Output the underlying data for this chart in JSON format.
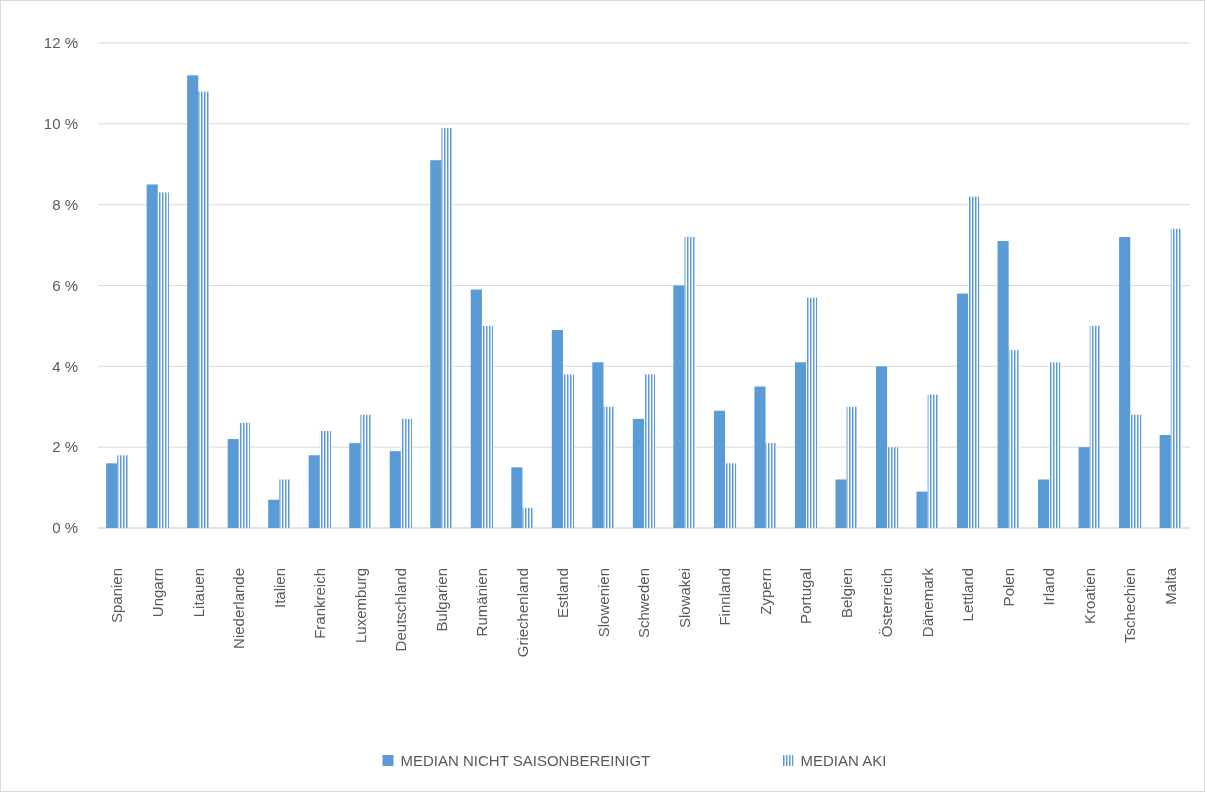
{
  "chart_data": {
    "type": "bar",
    "categories": [
      "Spanien",
      "Ungarn",
      "Litauen",
      "Niederlande",
      "Italien",
      "Frankreich",
      "Luxemburg",
      "Deutschland",
      "Bulgarien",
      "Rumänien",
      "Griechenland",
      "Estland",
      "Slowenien",
      "Schweden",
      "Slowakei",
      "Finnland",
      "Zypern",
      "Portugal",
      "Belgien",
      "Österreich",
      "Dänemark",
      "Lettland",
      "Polen",
      "Irland",
      "Kroatien",
      "Tschechien",
      "Malta"
    ],
    "series": [
      {
        "name": "MEDIAN NICHT SAISONBEREINIGT",
        "color": "#5b9bd5",
        "values": [
          1.6,
          8.5,
          11.2,
          2.2,
          0.7,
          1.8,
          2.1,
          1.9,
          9.1,
          5.9,
          1.5,
          4.9,
          4.1,
          2.7,
          6.0,
          2.9,
          3.5,
          4.1,
          1.2,
          4.0,
          0.9,
          5.8,
          7.1,
          1.2,
          2.0,
          7.2,
          2.3
        ]
      },
      {
        "name": "MEDIAN AKI",
        "color": "#5b9bd5",
        "values": [
          1.8,
          8.3,
          10.8,
          2.6,
          1.2,
          2.4,
          2.8,
          2.7,
          9.9,
          5.0,
          0.5,
          3.8,
          3.0,
          3.8,
          7.2,
          1.6,
          2.1,
          5.7,
          3.0,
          2.0,
          3.3,
          8.2,
          4.4,
          4.1,
          5.0,
          2.8,
          7.4
        ]
      }
    ],
    "ylim": [
      0,
      12
    ],
    "yticks": [
      {
        "value": 0,
        "label": "0 %"
      },
      {
        "value": 2,
        "label": "2 %"
      },
      {
        "value": 4,
        "label": "4 %"
      },
      {
        "value": 6,
        "label": "6 %"
      },
      {
        "value": 8,
        "label": "8 %"
      },
      {
        "value": 10,
        "label": "10 %"
      },
      {
        "value": 12,
        "label": "12 %"
      }
    ],
    "grid": "y",
    "legend": "bottom"
  }
}
